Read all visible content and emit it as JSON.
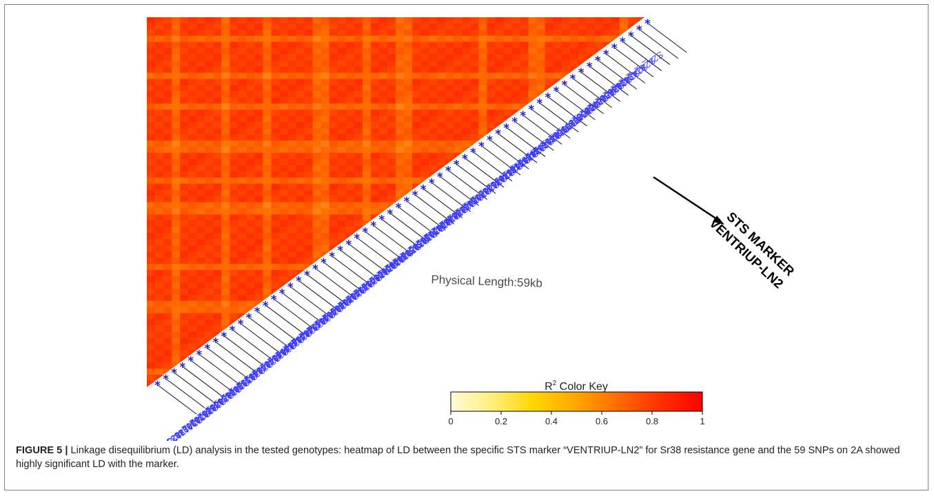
{
  "chart_data": {
    "type": "heatmap",
    "n_markers": 60,
    "marker_labels": [
      "S2A_81427744",
      "S2A_4942949",
      "S2A_3965805",
      "S2A_3965047",
      "S2A_2800711",
      "S2A_2800603",
      "S2A_2800595",
      "S2A_2336877",
      "S2A_2336965",
      "S2A_2336941",
      "VENTRIUP-LN2",
      "S2A_21065775",
      "S2A_19046803",
      "S2A_18487818",
      "S2A_18487755",
      "S2A_18487495",
      "S2A_18470353",
      "S2A_17841030",
      "S2A_17671876",
      "S2A_17671847",
      "S2A_17002870",
      "S2A_17002864",
      "S2A_16877288",
      "S2A_16877241",
      "S2A_16872238",
      "S2A_16872185",
      "S2A_15955590",
      "S2A_15955578",
      "S2A_15955555",
      "S2A_15944922",
      "S2A_15944911",
      "S2A_15005950",
      "S2A_15005933",
      "S2A_15005836",
      "S2A_14977233",
      "S2A_14970833",
      "S2A_14970683",
      "S2A_14970663",
      "S2A_14900145",
      "S2A_14900124",
      "S2A_14517287",
      "S2A_14517276",
      "S2A_14462117",
      "S2A_14462093",
      "S2A_14416836",
      "S2A_14416787",
      "S2A_14346538",
      "S2A_14346491",
      "S2A_14215335",
      "S2A_14215279",
      "S2A_13998645",
      "S2A_13998644",
      "S2A_13830656",
      "S2A_13830657",
      "S2A_13520783",
      "S2A_13520766",
      "S2A_13028346",
      "S2A_13028333",
      "S2A_11782383",
      "S2A_11782335"
    ],
    "low_r2_markers": [
      3,
      9,
      14,
      20,
      21,
      26,
      30,
      31,
      40,
      46,
      47,
      57
    ],
    "r2_min": 0,
    "r2_max": 1,
    "color_key": {
      "title": "R",
      "title_sup": "2",
      "title_rest": " Color Key",
      "ticks": [
        "0",
        "0.2",
        "0.4",
        "0.6",
        "0.8",
        "1"
      ],
      "colors": [
        "#fffadb",
        "#ffef7a",
        "#ffd500",
        "#ffa600",
        "#ff6a00",
        "#ff3000",
        "#ff0000"
      ]
    },
    "annotation_center": "Physical Length:59kb",
    "annotation_marker": [
      "STS MARKER",
      "VENTRIUP-LN2"
    ]
  },
  "caption": {
    "figure_label": "FIGURE 5 |",
    "text": " Linkage disequilibrium (LD) analysis in the tested genotypes: heatmap of LD between the specific STS marker “VENTRIUP-LN2” for Sr38 resistance gene and the 59 SNPs on 2A showed highly significant LD with the marker."
  }
}
